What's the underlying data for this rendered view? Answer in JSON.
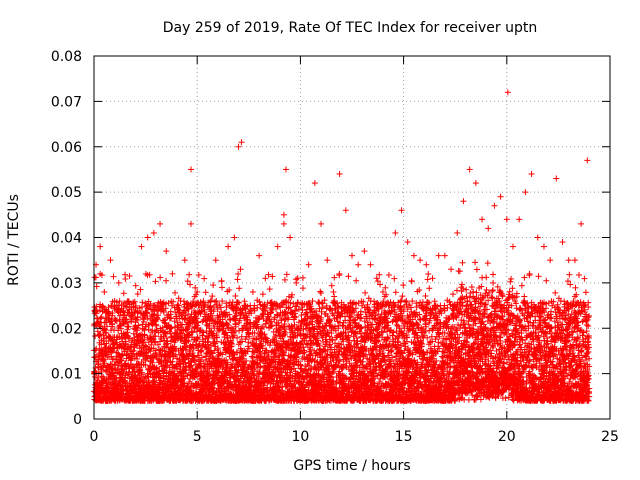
{
  "chart_data": {
    "type": "scatter",
    "title": "Day 259 of 2019, Rate Of TEC Index for receiver uptn",
    "xlabel": "GPS time / hours",
    "ylabel": "ROTI / TECUs",
    "xlim": [
      0,
      25
    ],
    "ylim": [
      0,
      0.08
    ],
    "x_ticks": [
      "0",
      "5",
      "10",
      "15",
      "20",
      "25"
    ],
    "y_ticks": [
      "0",
      "0.01",
      "0.02",
      "0.03",
      "0.04",
      "0.05",
      "0.06",
      "0.07",
      "0.08"
    ],
    "x_tick_values": [
      0,
      5,
      10,
      15,
      20,
      25
    ],
    "y_tick_values": [
      0,
      0.01,
      0.02,
      0.03,
      0.04,
      0.05,
      0.06,
      0.07,
      0.08
    ],
    "grid": true,
    "marker": "+",
    "color": "#ff0000",
    "series": [
      {
        "x": [
          0.1,
          0.3,
          0.5,
          0.8,
          1.0,
          1.2,
          1.5,
          1.8,
          2.0,
          2.3,
          2.6,
          2.9,
          3.2,
          3.5,
          3.8,
          4.1,
          4.4,
          4.7,
          5.0,
          5.3,
          5.6,
          5.9,
          6.2,
          6.5,
          6.8,
          7.1,
          7.4,
          7.7,
          8.0,
          8.3,
          8.6,
          8.9,
          9.2,
          9.5,
          9.8,
          10.1,
          10.4,
          10.7,
          11.0,
          11.3,
          11.6,
          11.9,
          12.2,
          12.5,
          12.8,
          13.1,
          13.4,
          13.7,
          14.0,
          14.3,
          14.6,
          14.9,
          15.2,
          15.5,
          15.8,
          16.1,
          16.4,
          16.7,
          17.0,
          17.3,
          17.6,
          17.9,
          18.2,
          18.5,
          18.8,
          19.1,
          19.4,
          19.7,
          20.0,
          20.3,
          20.6,
          20.9,
          21.2,
          21.5,
          21.8,
          22.1,
          22.4,
          22.7,
          23.0,
          23.3,
          23.6,
          23.9,
          0.2,
          0.4,
          0.9,
          1.1,
          1.4,
          2.1,
          2.5,
          3.0,
          3.4,
          4.0,
          4.6,
          5.2,
          5.8,
          6.4,
          7.0,
          7.2,
          7.9,
          8.5,
          9.0,
          9.3,
          9.9,
          10.5,
          11.1,
          11.7,
          12.0,
          12.3,
          12.9,
          13.5,
          14.1,
          14.7,
          15.0,
          15.3,
          15.9,
          16.5,
          17.1,
          17.7,
          18.0,
          18.3,
          18.6,
          18.9,
          19.5,
          20.1,
          20.4,
          20.7,
          21.3,
          21.6,
          22.2,
          22.5,
          22.8,
          23.4,
          23.8,
          0.15,
          0.6,
          1.3,
          2.2,
          3.1,
          4.2,
          4.7,
          5.5,
          6.6,
          7.15,
          7.6,
          8.8,
          9.2,
          10.8,
          11.4,
          11.9,
          12.1,
          13.2,
          14.4,
          15.1,
          16.0,
          17.4,
          17.8,
          18.1,
          18.4,
          18.7,
          19.0,
          19.3,
          19.6,
          20.05,
          20.2,
          21.0,
          21.4,
          22.0,
          22.6,
          23.1,
          23.5,
          23.9
        ],
        "y": [
          0.034,
          0.038,
          0.028,
          0.035,
          0.026,
          0.03,
          0.018,
          0.022,
          0.024,
          0.038,
          0.04,
          0.041,
          0.043,
          0.037,
          0.032,
          0.025,
          0.035,
          0.043,
          0.028,
          0.026,
          0.021,
          0.035,
          0.029,
          0.038,
          0.04,
          0.033,
          0.02,
          0.028,
          0.036,
          0.031,
          0.024,
          0.038,
          0.045,
          0.04,
          0.03,
          0.024,
          0.034,
          0.052,
          0.043,
          0.035,
          0.028,
          0.054,
          0.046,
          0.036,
          0.034,
          0.037,
          0.034,
          0.031,
          0.028,
          0.025,
          0.041,
          0.046,
          0.039,
          0.036,
          0.035,
          0.034,
          0.031,
          0.036,
          0.036,
          0.033,
          0.041,
          0.048,
          0.055,
          0.052,
          0.044,
          0.042,
          0.047,
          0.049,
          0.044,
          0.038,
          0.044,
          0.05,
          0.054,
          0.04,
          0.038,
          0.035,
          0.053,
          0.039,
          0.035,
          0.035,
          0.043,
          0.057,
          0.012,
          0.015,
          0.01,
          0.018,
          0.014,
          0.009,
          0.013,
          0.011,
          0.016,
          0.012,
          0.014,
          0.01,
          0.017,
          0.013,
          0.06,
          0.012,
          0.015,
          0.011,
          0.014,
          0.055,
          0.012,
          0.013,
          0.017,
          0.012,
          0.011,
          0.014,
          0.013,
          0.01,
          0.016,
          0.012,
          0.009,
          0.015,
          0.012,
          0.016,
          0.014,
          0.018,
          0.02,
          0.022,
          0.019,
          0.017,
          0.015,
          0.016,
          0.021,
          0.018,
          0.014,
          0.013,
          0.012,
          0.015,
          0.013,
          0.012,
          0.014,
          0.007,
          0.008,
          0.006,
          0.009,
          0.007,
          0.005,
          0.055,
          0.008,
          0.007,
          0.061,
          0.006,
          0.007,
          0.043,
          0.006,
          0.007,
          0.008,
          0.007,
          0.006,
          0.007,
          0.008,
          0.006,
          0.007,
          0.008,
          0.009,
          0.008,
          0.007,
          0.006,
          0.007,
          0.008,
          0.072,
          0.009,
          0.006,
          0.007,
          0.008,
          0.005,
          0.006,
          0.007,
          0.006
        ]
      }
    ]
  }
}
